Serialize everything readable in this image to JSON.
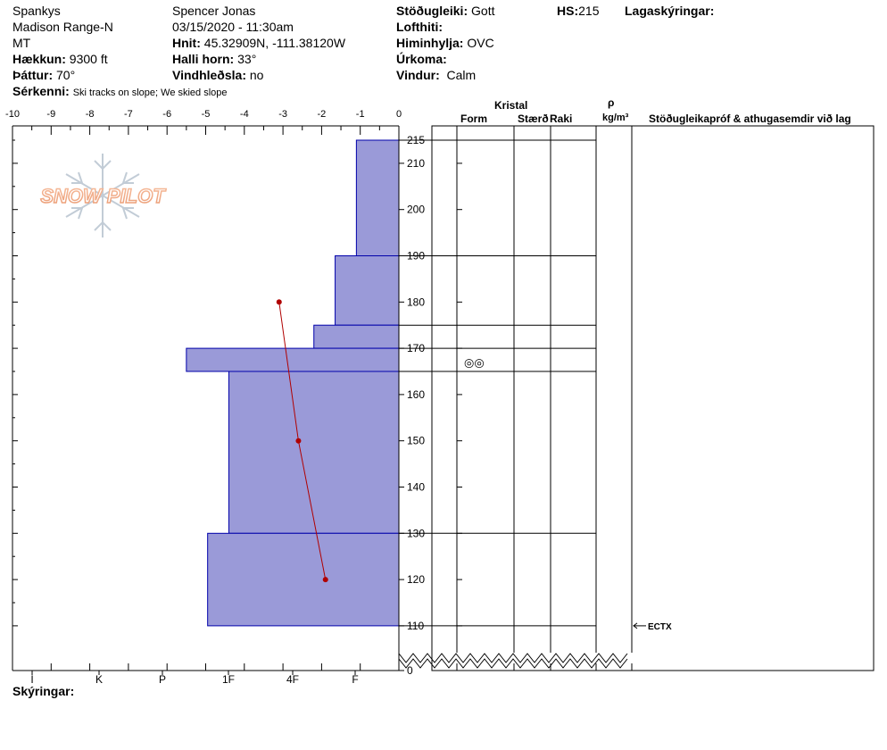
{
  "header": {
    "observer": "Spankys",
    "range": "Madison Range-N",
    "state": "MT",
    "elevation_label": "Hækkun:",
    "elevation_value": "9300 ft",
    "aspect_label": "Þáttur:",
    "aspect_value": "70°",
    "features_label": "Sérkenni:",
    "features_value": "Ski tracks on slope; We skied slope",
    "name": "Spencer Jonas",
    "datetime": "03/15/2020 - 11:30am",
    "coords_label": "Hnit:",
    "coords_value": "45.32909N, -111.38120W",
    "slope_label": "Halli horn:",
    "slope_value": "33°",
    "wind_loading_label": "Vindhleðsla:",
    "wind_loading_value": "no",
    "stability_label": "Stöðugleiki:",
    "stability_value": "Gott",
    "air_temp_label": "Lofthiti:",
    "sky_label": "Himinhylja:",
    "sky_value": "OVC",
    "precip_label": "Úrkoma:",
    "wind_label": "Vindur:",
    "wind_value": "Calm",
    "hs_label": "HS:",
    "hs_value": "215",
    "layer_notes_label": "Lagaskýringar:"
  },
  "columns": {
    "crystal": "Kristal",
    "form": "Form",
    "size": "Stærð",
    "moisture": "Raki",
    "rho": "ρ",
    "density_unit": "kg/m³",
    "comments": "Stöðugleikapróf & athugasemdir við lag"
  },
  "footer": {
    "notes_label": "Skýringar:"
  },
  "logo_text": "SNOW PILOT",
  "colors": {
    "hardness_fill": "#9a9ad8",
    "hardness_stroke": "#0000aa",
    "temp_line": "#b00000"
  },
  "chart_data": {
    "type": "bar",
    "title": "",
    "y_unit": "cm",
    "depth_ticks": [
      215,
      210,
      200,
      190,
      180,
      170,
      160,
      150,
      140,
      130,
      120,
      110,
      0
    ],
    "temp_ticks": [
      "-10",
      "-9",
      "-8",
      "-7",
      "-6",
      "-5",
      "-4",
      "-3",
      "-2",
      "-1",
      "0"
    ],
    "temp_range": [
      -10,
      0
    ],
    "hardness_scale": [
      "I",
      "K",
      "P",
      "1F",
      "4F",
      "F"
    ],
    "hardness_profile": [
      {
        "top": 215,
        "bottom": 190,
        "temp_width": -1.1
      },
      {
        "top": 190,
        "bottom": 175,
        "temp_width": -1.65
      },
      {
        "top": 175,
        "bottom": 170,
        "temp_width": -2.2
      },
      {
        "top": 170,
        "bottom": 165,
        "temp_width": -5.5
      },
      {
        "top": 165,
        "bottom": 130,
        "temp_width": -4.4
      },
      {
        "top": 130,
        "bottom": 110,
        "temp_width": -4.95
      }
    ],
    "temperature_profile": [
      {
        "depth": 180,
        "temp": -3.1
      },
      {
        "depth": 150,
        "temp": -2.6
      },
      {
        "depth": 120,
        "temp": -1.9
      }
    ],
    "layer_boundaries": [
      215,
      190,
      175,
      170,
      165,
      130,
      110
    ],
    "grain_forms": [
      {
        "depth": 167,
        "symbol": "◎◎"
      }
    ],
    "stability_tests": [
      {
        "depth": 110,
        "label": "ECTX"
      }
    ]
  }
}
